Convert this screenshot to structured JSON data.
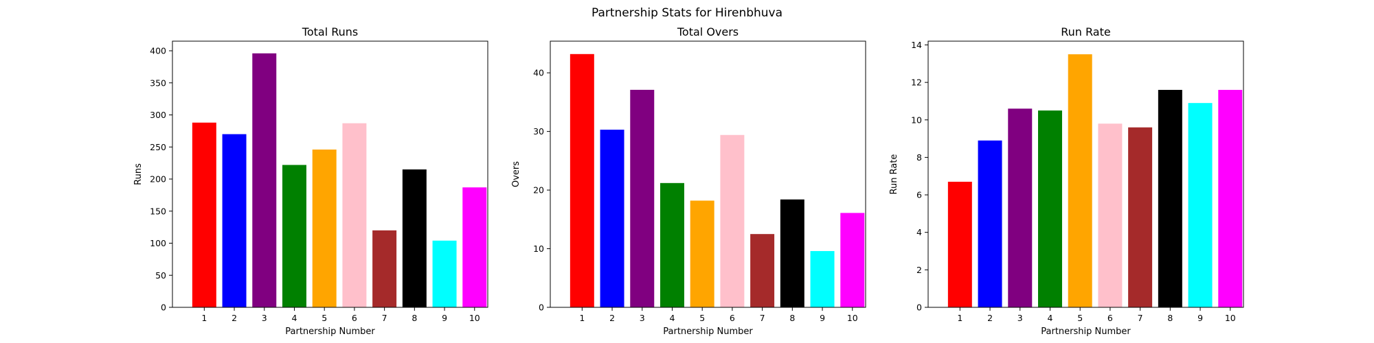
{
  "figure": {
    "suptitle": "Partnership Stats for Hirenbhuva"
  },
  "chart_data": [
    {
      "type": "bar",
      "title": "Total Runs",
      "xlabel": "Partnership Number",
      "ylabel": "Runs",
      "categories": [
        "1",
        "2",
        "3",
        "4",
        "5",
        "6",
        "7",
        "8",
        "9",
        "10"
      ],
      "values": [
        288,
        270,
        396,
        222,
        246,
        287,
        120,
        215,
        104,
        187
      ],
      "colors": [
        "#ff0000",
        "#0000ff",
        "#800080",
        "#008000",
        "#ffa500",
        "#ffc0cb",
        "#a52a2a",
        "#000000",
        "#00ffff",
        "#ff00ff"
      ],
      "ylim": [
        0,
        415
      ],
      "yticks": [
        0,
        50,
        100,
        150,
        200,
        250,
        300,
        350,
        400
      ],
      "grid": false,
      "legend": "none"
    },
    {
      "type": "bar",
      "title": "Total Overs",
      "xlabel": "Partnership Number",
      "ylabel": "Overs",
      "categories": [
        "1",
        "2",
        "3",
        "4",
        "5",
        "6",
        "7",
        "8",
        "9",
        "10"
      ],
      "values": [
        43.2,
        30.3,
        37.1,
        21.2,
        18.2,
        29.4,
        12.5,
        18.4,
        9.6,
        16.1
      ],
      "colors": [
        "#ff0000",
        "#0000ff",
        "#800080",
        "#008000",
        "#ffa500",
        "#ffc0cb",
        "#a52a2a",
        "#000000",
        "#00ffff",
        "#ff00ff"
      ],
      "ylim": [
        0,
        45.4
      ],
      "yticks": [
        0,
        10,
        20,
        30,
        40
      ],
      "grid": false,
      "legend": "none"
    },
    {
      "type": "bar",
      "title": "Run Rate",
      "xlabel": "Partnership Number",
      "ylabel": "Run Rate",
      "categories": [
        "1",
        "2",
        "3",
        "4",
        "5",
        "6",
        "7",
        "8",
        "9",
        "10"
      ],
      "values": [
        6.7,
        8.9,
        10.6,
        10.5,
        13.5,
        9.8,
        9.6,
        11.6,
        10.9,
        11.6
      ],
      "colors": [
        "#ff0000",
        "#0000ff",
        "#800080",
        "#008000",
        "#ffa500",
        "#ffc0cb",
        "#a52a2a",
        "#000000",
        "#00ffff",
        "#ff00ff"
      ],
      "ylim": [
        0,
        14.2
      ],
      "yticks": [
        0,
        2,
        4,
        6,
        8,
        10,
        12,
        14
      ],
      "grid": false,
      "legend": "none"
    }
  ]
}
